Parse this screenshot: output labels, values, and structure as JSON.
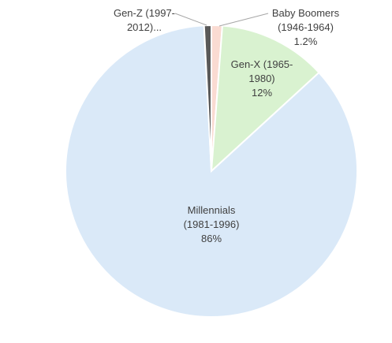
{
  "chart_data": {
    "type": "pie",
    "categories": [
      "Baby Boomers (1946-1964)",
      "Gen-X (1965-1980)",
      "Millennials (1981-1996)",
      "Gen-Z (1997-2012)..."
    ],
    "values": [
      1.2,
      12,
      86,
      0.8
    ],
    "value_labels": [
      "1.2%",
      "12%",
      "86%",
      null
    ],
    "colors": [
      "#fadbd2",
      "#d9f2d0",
      "#dae9f8",
      "#595959"
    ]
  }
}
